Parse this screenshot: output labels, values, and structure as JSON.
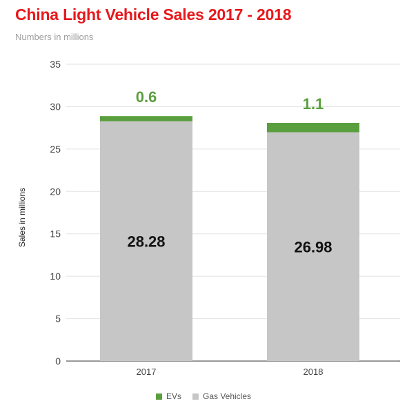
{
  "chart_data": {
    "type": "bar",
    "stacked": true,
    "title": "China Light Vehicle Sales 2017 - 2018",
    "subtitle": "Numbers in millions",
    "xlabel": "",
    "ylabel": "Sales in millions",
    "categories": [
      "2017",
      "2018"
    ],
    "series": [
      {
        "name": "Gas Vehicles",
        "values": [
          28.28,
          26.98
        ],
        "color": "#c6c6c6"
      },
      {
        "name": "EVs",
        "values": [
          0.6,
          1.1
        ],
        "color": "#5a9f3e"
      }
    ],
    "value_labels": {
      "Gas Vehicles": [
        "28.28",
        "26.98"
      ],
      "EVs": [
        "0.6",
        "1.1"
      ]
    },
    "yticks": [
      "0",
      "5",
      "10",
      "15",
      "20",
      "25",
      "30",
      "35"
    ],
    "ylim": [
      0,
      35
    ],
    "grid": true,
    "legend": {
      "position": "bottom",
      "entries": [
        "EVs",
        "Gas Vehicles"
      ]
    }
  }
}
